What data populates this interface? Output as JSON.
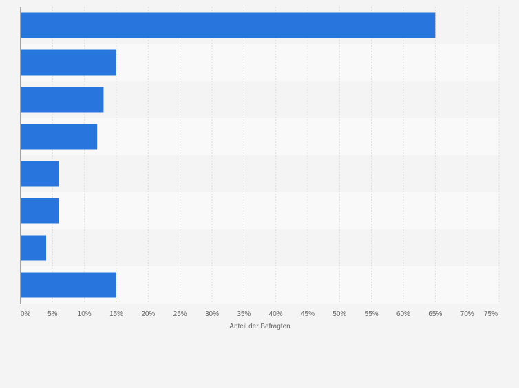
{
  "chart_data": {
    "type": "bar",
    "orientation": "horizontal",
    "categories": [
      "",
      "",
      "",
      "",
      "",
      "",
      "",
      ""
    ],
    "values": [
      65,
      15,
      13,
      12,
      6,
      6,
      4,
      15
    ],
    "xlabel": "Anteil der Befragten",
    "xlim": [
      0,
      75
    ],
    "ticks": [
      "0%",
      "5%",
      "10%",
      "15%",
      "20%",
      "25%",
      "30%",
      "35%",
      "40%",
      "45%",
      "50%",
      "55%",
      "60%",
      "65%",
      "70%",
      "75%"
    ],
    "grid": true,
    "colors": {
      "bar": "#2876dd",
      "band_light": "#f9f9f9",
      "band_dark": "#f4f4f4",
      "grid": "#dddddd",
      "axis": "#555555",
      "tick_text": "#666666"
    }
  }
}
